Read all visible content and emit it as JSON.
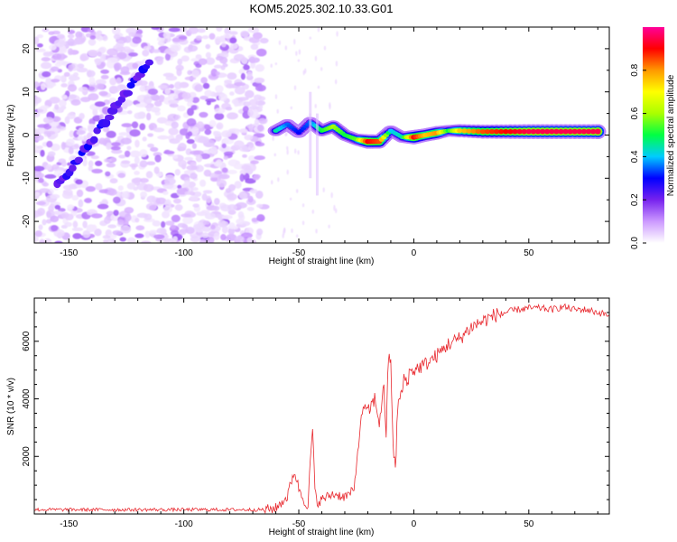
{
  "title": "KOM5.2025.302.10.33.G01",
  "chart_data": [
    {
      "type": "heatmap",
      "name": "spectrogram",
      "xlabel": "Height of straight line (km)",
      "ylabel": "Frequency (Hz)",
      "xlim": [
        -165,
        85
      ],
      "ylim": [
        -25,
        25
      ],
      "xticks": [
        -150,
        -100,
        -50,
        0,
        50
      ],
      "yticks": [
        -20,
        -10,
        0,
        10,
        20
      ],
      "tick_labels_x": [
        "-150",
        "-100",
        "-50",
        "0",
        "50"
      ],
      "tick_labels_y": [
        "-20",
        "-10",
        "0",
        "10",
        "20"
      ],
      "noise_region": {
        "x": [
          -165,
          -65
        ],
        "amplitude_range": [
          0.02,
          0.1
        ]
      },
      "diagonal_streak": {
        "x": [
          -155,
          -115
        ],
        "y": [
          -12,
          17
        ]
      },
      "band": [
        {
          "x": -60,
          "y": 1,
          "amp": 0.45
        },
        {
          "x": -55,
          "y": 2.5,
          "amp": 0.35
        },
        {
          "x": -50,
          "y": 0.5,
          "amp": 0.3
        },
        {
          "x": -45,
          "y": 3,
          "amp": 0.35
        },
        {
          "x": -40,
          "y": 1,
          "amp": 0.5
        },
        {
          "x": -35,
          "y": 2,
          "amp": 0.6
        },
        {
          "x": -30,
          "y": 0,
          "amp": 0.5
        },
        {
          "x": -25,
          "y": -1,
          "amp": 0.55
        },
        {
          "x": -20,
          "y": -1.5,
          "amp": 0.9
        },
        {
          "x": -15,
          "y": -1.5,
          "amp": 0.85
        },
        {
          "x": -10,
          "y": 1,
          "amp": 0.4
        },
        {
          "x": -5,
          "y": -0.5,
          "amp": 0.45
        },
        {
          "x": 0,
          "y": -0.5,
          "amp": 0.9
        },
        {
          "x": 5,
          "y": 0,
          "amp": 0.75
        },
        {
          "x": 10,
          "y": 0.5,
          "amp": 0.8
        },
        {
          "x": 15,
          "y": 1,
          "amp": 0.5
        },
        {
          "x": 20,
          "y": 1,
          "amp": 0.75
        },
        {
          "x": 30,
          "y": 0.8,
          "amp": 0.85
        },
        {
          "x": 40,
          "y": 0.8,
          "amp": 0.9
        },
        {
          "x": 50,
          "y": 0.8,
          "amp": 0.95
        },
        {
          "x": 60,
          "y": 0.8,
          "amp": 0.95
        },
        {
          "x": 70,
          "y": 0.8,
          "amp": 0.95
        },
        {
          "x": 80,
          "y": 0.8,
          "amp": 0.95
        }
      ]
    },
    {
      "type": "colorbar",
      "name": "colorbar",
      "label": "Normalized spectral amplitude",
      "range": [
        0,
        1
      ],
      "ticks": [
        0.0,
        0.2,
        0.4,
        0.6,
        0.8
      ],
      "tick_labels": [
        "0.0",
        "0.2",
        "0.4",
        "0.6",
        "0.8"
      ],
      "colors": [
        "#ffffff",
        "#cc99ff",
        "#7722ee",
        "#0000ff",
        "#00ccff",
        "#00ff44",
        "#aaff00",
        "#ffff00",
        "#ff9900",
        "#ff0000",
        "#ff0099"
      ]
    },
    {
      "type": "line",
      "name": "snr",
      "xlabel": "Height of straight line (km)",
      "ylabel": "SNR (10 * v/v)",
      "xlim": [
        -165,
        85
      ],
      "ylim": [
        0,
        7500
      ],
      "xticks": [
        -150,
        -100,
        -50,
        0,
        50
      ],
      "yticks": [
        2000,
        4000,
        6000
      ],
      "tick_labels_x": [
        "-150",
        "-100",
        "-50",
        "0",
        "50"
      ],
      "tick_labels_y": [
        "2000",
        "4000",
        "6000"
      ],
      "color": "#e8282e",
      "x": [
        -165,
        -65,
        -60,
        -55,
        -52,
        -50,
        -48,
        -46,
        -45,
        -44,
        -43,
        -42,
        -40,
        -35,
        -30,
        -26,
        -24,
        -22,
        -20,
        -17,
        -15,
        -13,
        -12,
        -11,
        -10,
        -9,
        -8,
        -7,
        -6,
        -5,
        -4,
        -3,
        -2,
        0,
        5,
        10,
        15,
        20,
        25,
        30,
        35,
        40,
        45,
        50,
        55,
        60,
        65,
        70,
        75,
        80,
        85
      ],
      "y": [
        150,
        150,
        200,
        600,
        1500,
        900,
        500,
        300,
        1800,
        3000,
        800,
        400,
        500,
        700,
        600,
        800,
        2500,
        3800,
        3500,
        4000,
        3200,
        4400,
        2800,
        5500,
        5200,
        2500,
        1400,
        3800,
        4000,
        4300,
        4800,
        4500,
        4900,
        5000,
        5200,
        5500,
        5900,
        6100,
        6500,
        6700,
        6900,
        7000,
        7100,
        7150,
        7150,
        7100,
        7200,
        7100,
        7100,
        7000,
        6900
      ]
    }
  ]
}
